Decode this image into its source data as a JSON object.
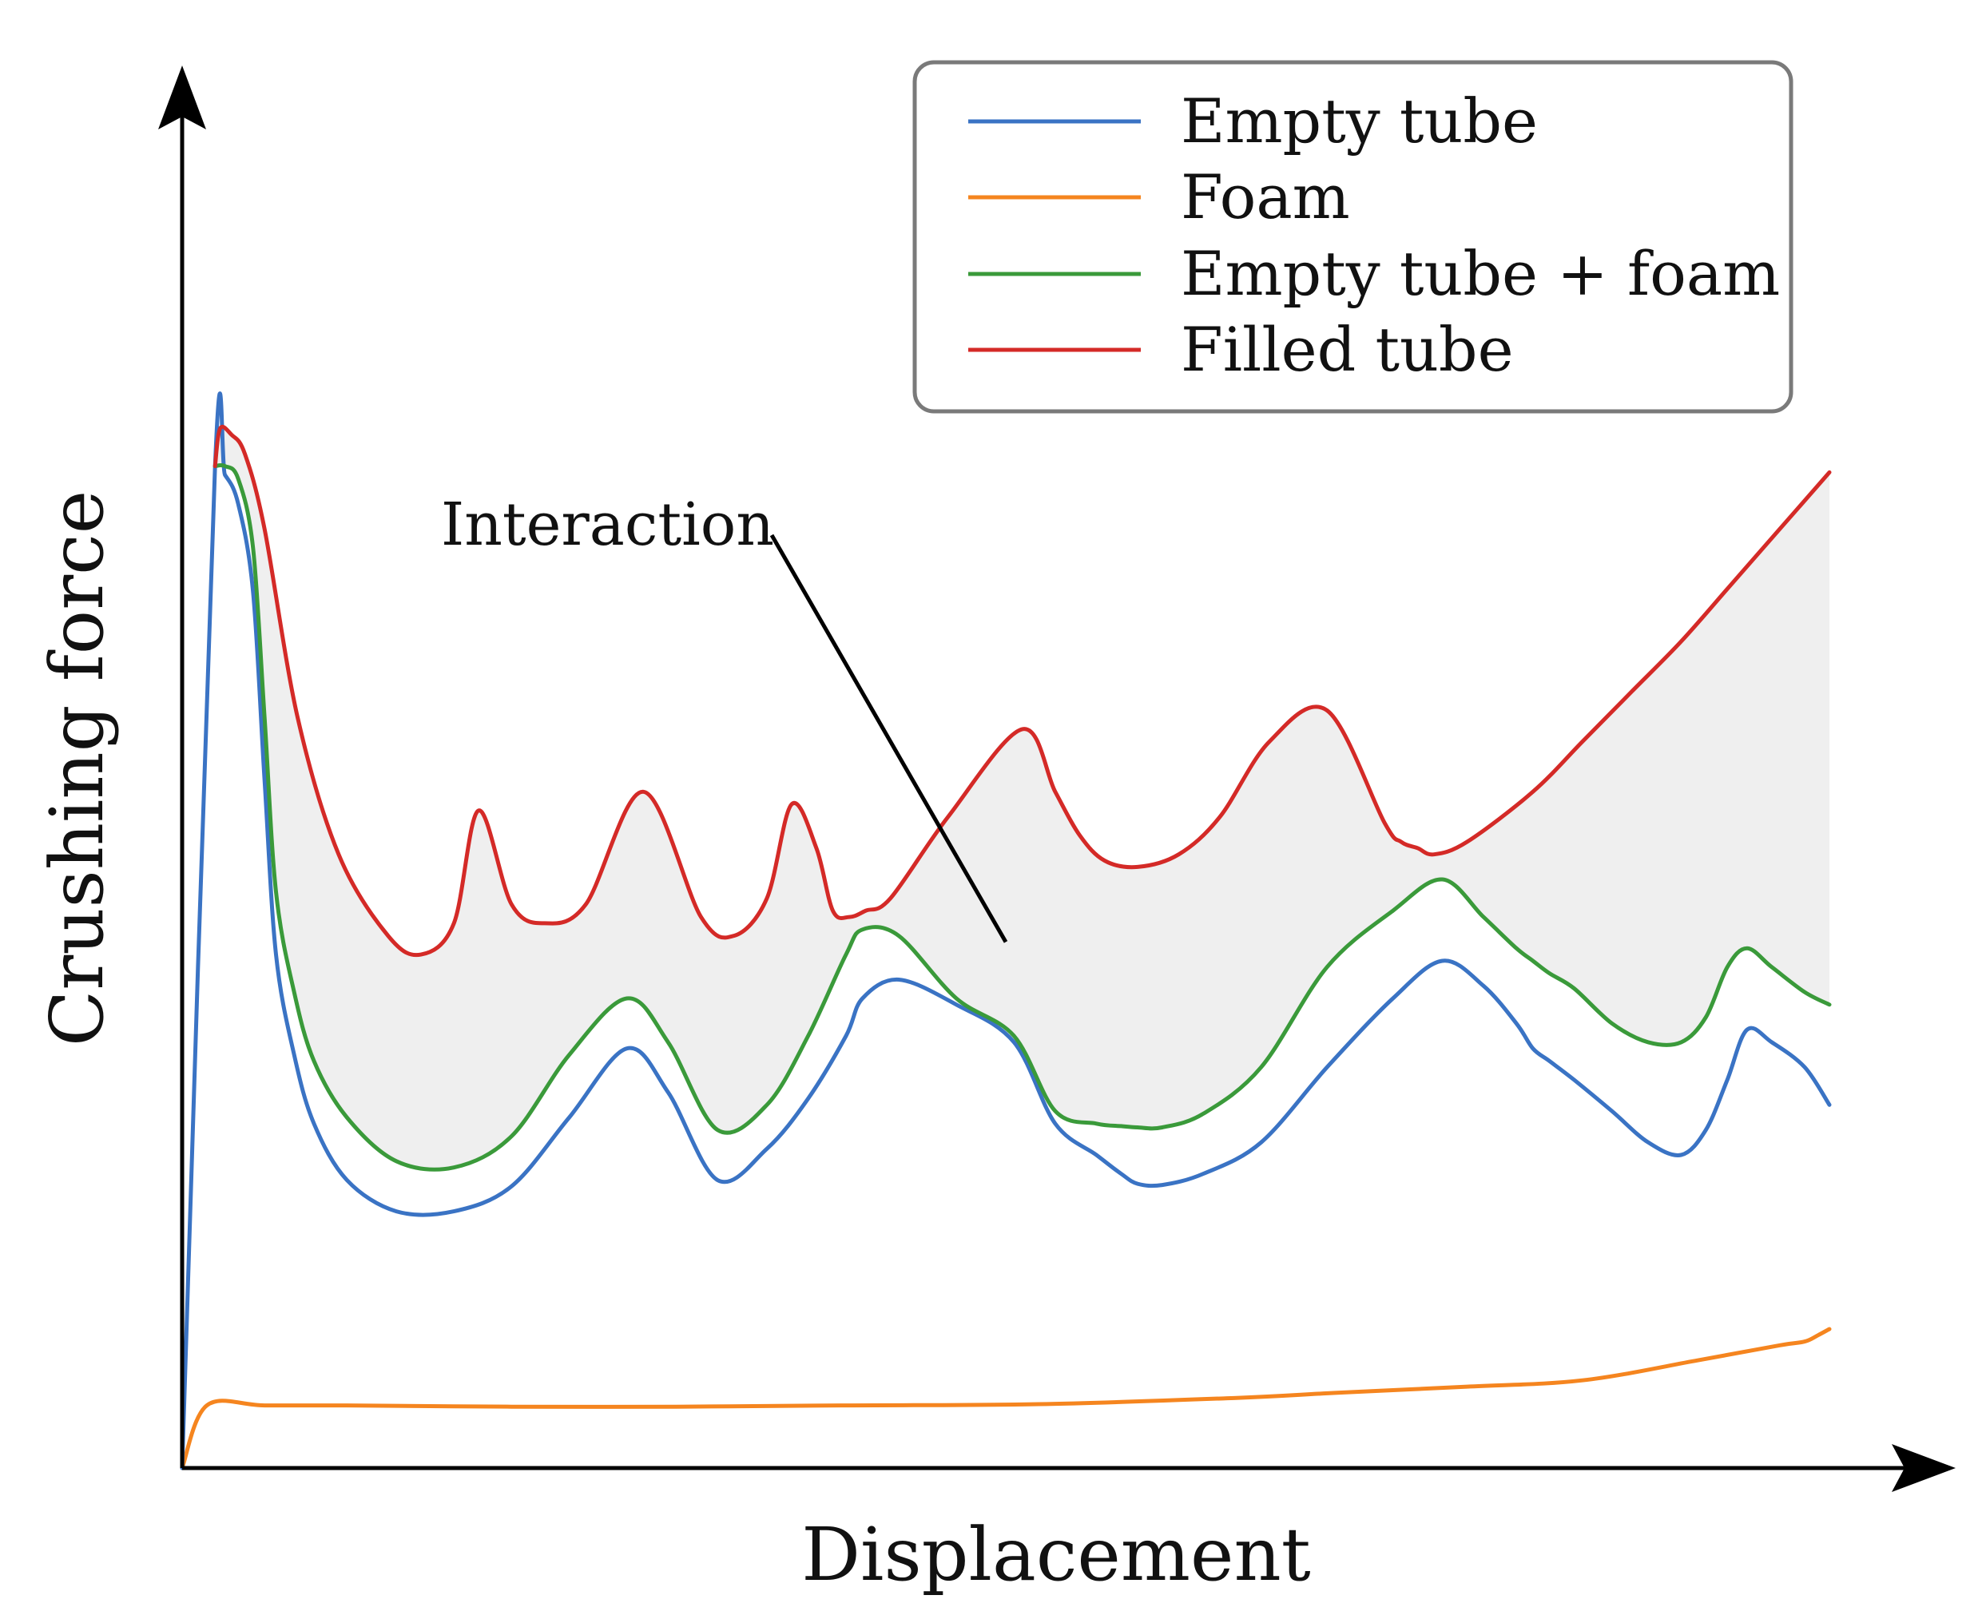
{
  "chart_data": {
    "type": "line",
    "title": "",
    "xlabel": "Displacement",
    "ylabel": "Crushing force",
    "xlim": [
      0,
      100
    ],
    "ylim": [
      0,
      100
    ],
    "grid": false,
    "ticks": "none",
    "legend_position": "top-right",
    "legend": [
      {
        "label": "Empty tube",
        "series": "empty"
      },
      {
        "label": "Foam",
        "series": "foam"
      },
      {
        "label": "Empty tube + foam",
        "series": "sum"
      },
      {
        "label": "Filled tube",
        "series": "filled"
      }
    ],
    "series": [
      {
        "key": "empty",
        "name": "Empty tube",
        "color": "#3a73c4",
        "x": [
          0,
          2.0,
          2.6,
          3.4,
          4.3,
          5.0,
          5.7,
          6.8,
          8.0,
          10.0,
          13.0,
          16.5,
          20.0,
          23.5,
          27.0,
          29.5,
          32.5,
          35.5,
          38.0,
          40.3,
          41.3,
          43.5,
          47.0,
          50.5,
          53.0,
          55.5,
          57.0,
          58.0,
          59.5,
          62.0,
          65.5,
          69.5,
          73.5,
          76.5,
          79.0,
          81.0,
          82.0,
          83.0,
          84.5,
          86.8,
          89.0,
          91.0,
          92.5,
          93.8,
          95.0,
          96.5,
          98.5,
          100.0
        ],
        "y": [
          0,
          80.0,
          79.3,
          77.0,
          70.0,
          55.0,
          41.0,
          33.0,
          27.5,
          23.0,
          20.5,
          20.5,
          22.5,
          28.0,
          33.5,
          30.0,
          23.0,
          25.5,
          29.5,
          34.5,
          37.5,
          39.0,
          37.0,
          34.0,
          27.5,
          25.0,
          23.5,
          22.7,
          22.6,
          23.5,
          26.0,
          32.0,
          37.5,
          40.5,
          38.5,
          35.5,
          33.5,
          32.5,
          31.0,
          28.5,
          26.0,
          25.0,
          27.0,
          31.0,
          35.0,
          34.0,
          32.0,
          29.0
        ]
      },
      {
        "key": "foam",
        "name": "Foam",
        "color": "#f5851f",
        "x": [
          0,
          1.5,
          5.0,
          10.0,
          20.0,
          30.0,
          40.0,
          52.0,
          64.0,
          70.0,
          78.0,
          85.0,
          92.0,
          97.0,
          98.5,
          99.3,
          100.0
        ],
        "y": [
          0,
          5.0,
          5.0,
          5.0,
          4.9,
          4.9,
          5.0,
          5.1,
          5.6,
          6.0,
          6.5,
          7.0,
          8.6,
          9.8,
          10.1,
          10.6,
          11.1
        ]
      },
      {
        "key": "sum",
        "name": "Empty tube + foam",
        "color": "#3a9a3a",
        "x": [
          2.0,
          2.6,
          3.4,
          4.3,
          5.0,
          5.7,
          6.8,
          8.0,
          10.0,
          13.0,
          16.5,
          20.0,
          23.5,
          27.0,
          29.5,
          32.5,
          35.5,
          38.0,
          40.3,
          41.3,
          43.5,
          47.0,
          50.5,
          53.0,
          55.5,
          57.0,
          58.0,
          59.5,
          62.0,
          65.5,
          69.5,
          73.5,
          76.5,
          79.0,
          81.0,
          82.0,
          83.0,
          84.5,
          86.8,
          89.0,
          91.0,
          92.5,
          93.8,
          95.0,
          96.5,
          98.5,
          100.0
        ],
        "y": [
          80.0,
          80.0,
          79.0,
          73.5,
          60.0,
          46.0,
          38.0,
          32.5,
          28.0,
          24.5,
          24.0,
          26.5,
          33.0,
          37.5,
          34.0,
          27.0,
          29.0,
          34.5,
          41.0,
          43.0,
          42.5,
          37.5,
          34.5,
          28.5,
          27.5,
          27.3,
          27.2,
          27.2,
          28.3,
          32.0,
          40.0,
          44.5,
          47.0,
          44.0,
          41.5,
          40.5,
          39.5,
          38.3,
          35.5,
          34.0,
          34.0,
          36.0,
          40.0,
          41.5,
          40.0,
          38.0,
          37.0
        ]
      },
      {
        "key": "filled",
        "name": "Filled tube",
        "color": "#d42a27",
        "x": [
          2.0,
          2.3,
          3.0,
          3.8,
          5.0,
          7.0,
          9.5,
          12.5,
          14.5,
          16.5,
          18.0,
          20.0,
          22.0,
          24.5,
          28.0,
          31.5,
          33.5,
          35.5,
          37.0,
          38.5,
          39.5,
          40.5,
          41.5,
          43.0,
          46.5,
          51.0,
          53.0,
          54.5,
          56.0,
          58.0,
          60.5,
          63.0,
          66.0,
          69.5,
          73.0,
          74.0,
          75.0,
          76.0,
          78.0,
          82.0,
          85.0,
          88.0,
          91.0,
          94.0,
          97.0,
          100.0
        ],
        "y": [
          80.0,
          83.0,
          82.5,
          81.0,
          75.0,
          60.0,
          49.0,
          42.5,
          41.0,
          43.5,
          52.5,
          45.0,
          43.5,
          45.0,
          54.0,
          44.0,
          42.5,
          45.5,
          53.0,
          49.5,
          44.5,
          44.0,
          44.5,
          45.5,
          52.0,
          59.0,
          54.0,
          50.5,
          48.5,
          48.0,
          49.0,
          52.0,
          58.0,
          60.5,
          51.5,
          50.0,
          49.5,
          49.0,
          50.0,
          54.0,
          58.0,
          62.0,
          66.0,
          70.5,
          75.0,
          79.5
        ]
      }
    ],
    "shaded_region": {
      "between": [
        "sum",
        "filled"
      ],
      "color": "#efefef"
    },
    "annotations": [
      {
        "text": "Interaction",
        "points_to": "shaded_region",
        "target_x": 50.0,
        "target_y": 42.0
      }
    ]
  }
}
